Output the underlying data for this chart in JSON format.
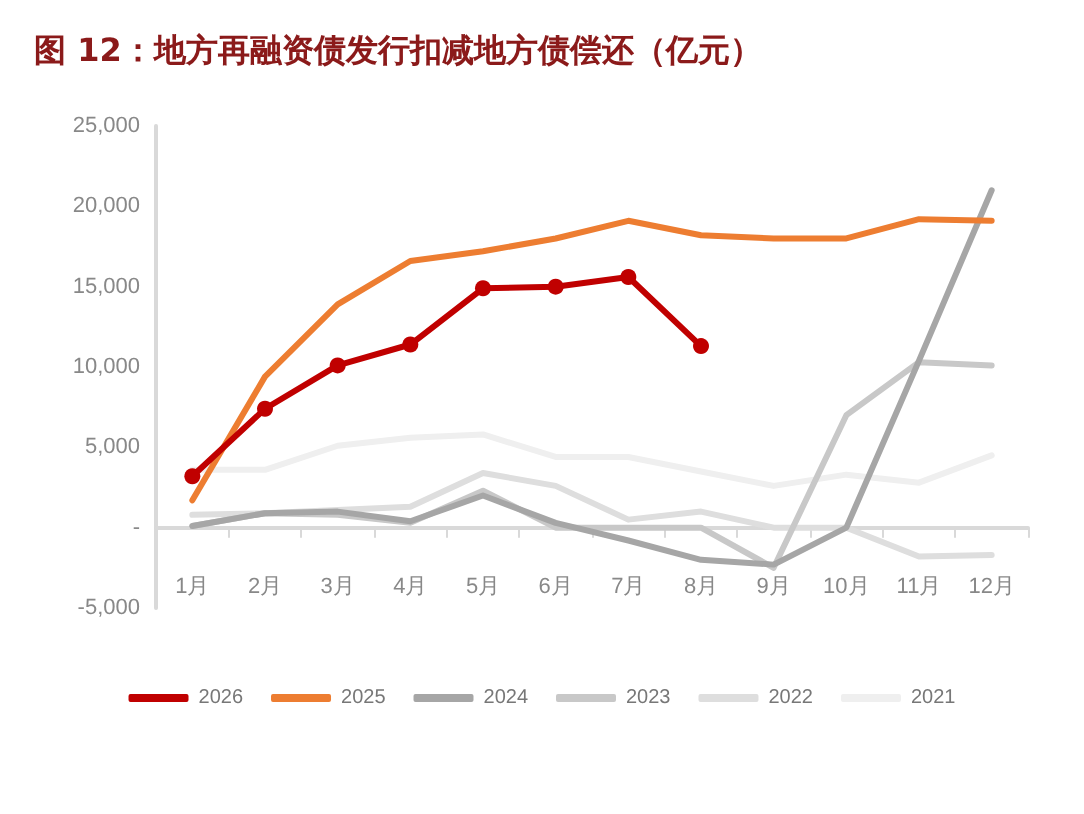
{
  "chart_data": {
    "type": "line",
    "title": "图 12：地方再融资债发行扣减地方债偿还（亿元）",
    "categories": [
      "1月",
      "2月",
      "3月",
      "4月",
      "5月",
      "6月",
      "7月",
      "8月",
      "9月",
      "10月",
      "11月",
      "12月"
    ],
    "series": [
      {
        "name": "2026",
        "color": "#c00000",
        "marker": "circle",
        "values": [
          3200,
          7400,
          10100,
          11400,
          14900,
          15000,
          15600,
          11300,
          null,
          null,
          null,
          null
        ]
      },
      {
        "name": "2025",
        "color": "#ed7d31",
        "values": [
          1700,
          9400,
          13900,
          16600,
          17200,
          18000,
          19100,
          18200,
          18000,
          18000,
          19200,
          19100
        ]
      },
      {
        "name": "2024",
        "color": "#a6a6a6",
        "values": [
          100,
          900,
          1000,
          400,
          2000,
          300,
          -800,
          -2000,
          -2300,
          0,
          10400,
          21000
        ]
      },
      {
        "name": "2023",
        "color": "#c8c8c8",
        "values": [
          100,
          900,
          800,
          300,
          2300,
          0,
          0,
          0,
          -2500,
          7000,
          10300,
          10100
        ]
      },
      {
        "name": "2022",
        "color": "#dedede",
        "values": [
          800,
          900,
          1100,
          1300,
          3400,
          2600,
          500,
          1000,
          0,
          0,
          -1800,
          -1700
        ]
      },
      {
        "name": "2021",
        "color": "#efefef",
        "values": [
          3600,
          3600,
          5100,
          5600,
          5800,
          4400,
          4400,
          3500,
          2600,
          3300,
          2800,
          4500
        ]
      }
    ],
    "ylim": [
      -5000,
      25000
    ],
    "yticks": [
      {
        "value": -5000,
        "label": "-5,000"
      },
      {
        "value": 0,
        "label": "-"
      },
      {
        "value": 5000,
        "label": "5,000"
      },
      {
        "value": 10000,
        "label": "10,000"
      },
      {
        "value": 15000,
        "label": "15,000"
      },
      {
        "value": 20000,
        "label": "20,000"
      },
      {
        "value": 25000,
        "label": "25,000"
      }
    ],
    "grid": false,
    "legend": "bottom",
    "marker": "none",
    "line_style": "solid"
  }
}
